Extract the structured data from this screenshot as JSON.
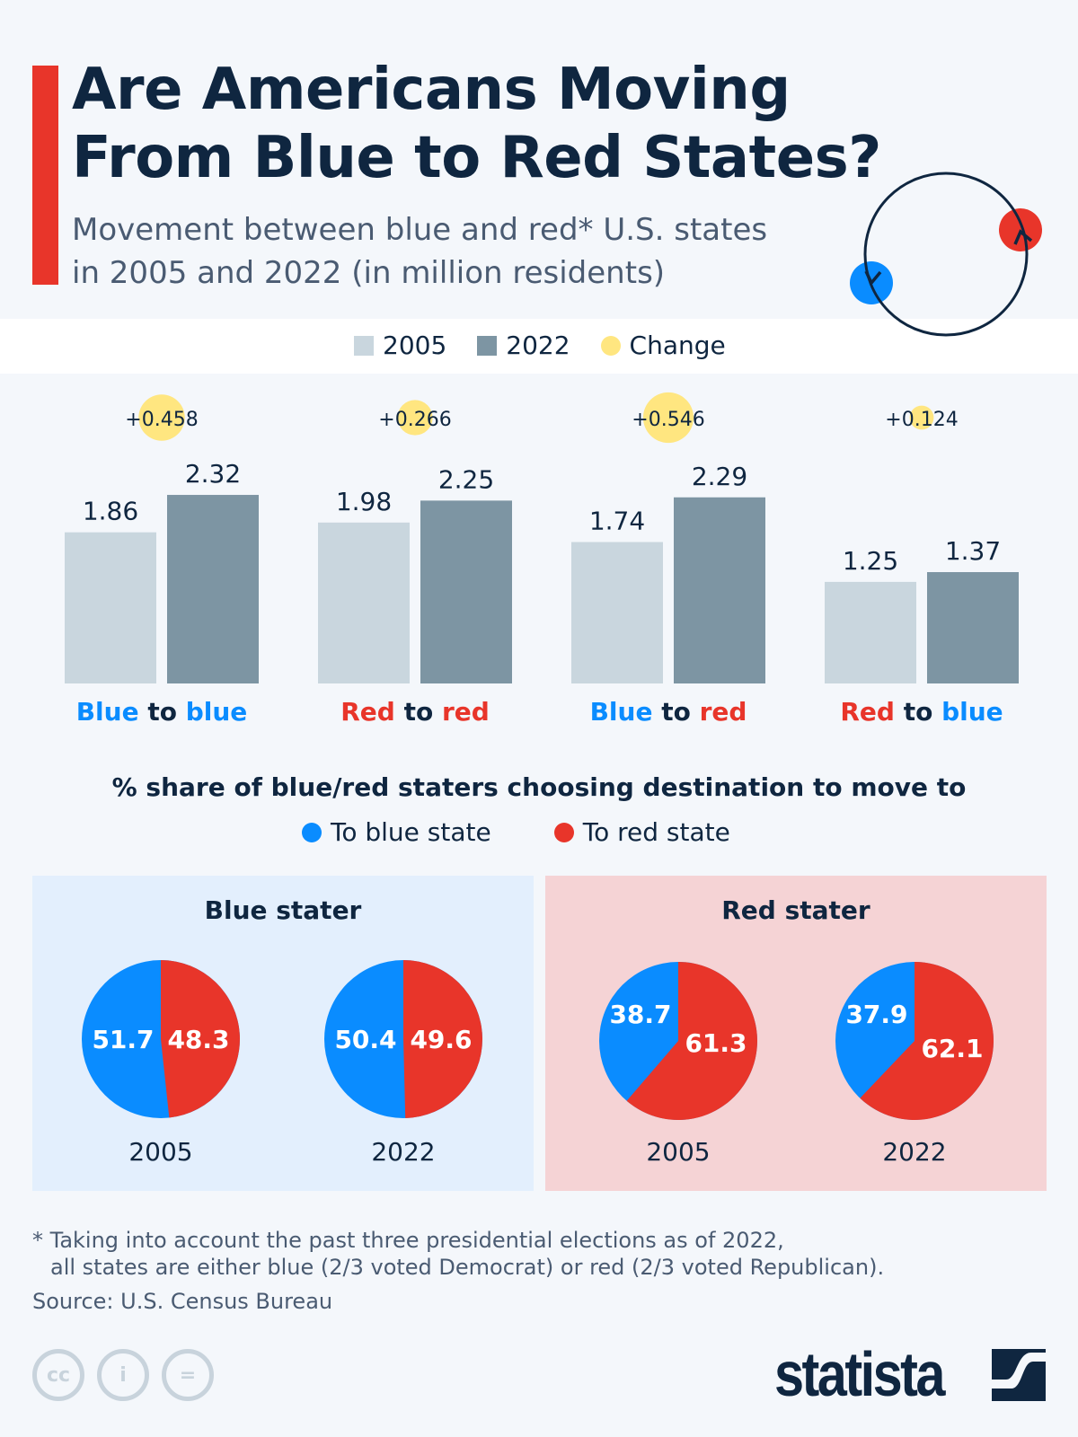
{
  "header": {
    "title_line1": "Are Americans Moving",
    "title_line2": "From Blue to Red States?",
    "subtitle_line1": "Movement between blue and red* U.S. states",
    "subtitle_line2": "in 2005 and 2022 (in million residents)"
  },
  "colors": {
    "accent": "#e8352a",
    "blue": "#0a8cff",
    "red": "#e8352a",
    "bar2005": "#c9d6de",
    "bar2022": "#7d95a3",
    "change": "#ffe680",
    "navy": "#0f2640",
    "blue_panel": "#e3effd",
    "red_panel": "#f5d3d5"
  },
  "chart_data": [
    {
      "type": "bar",
      "legend": [
        "2005",
        "2022",
        "Change"
      ],
      "categories": [
        {
          "from": "Blue",
          "to": "blue",
          "from_color": "blue",
          "to_color": "blue"
        },
        {
          "from": "Red",
          "to": "red",
          "from_color": "red",
          "to_color": "red"
        },
        {
          "from": "Blue",
          "to": "red",
          "from_color": "blue",
          "to_color": "red"
        },
        {
          "from": "Red",
          "to": "blue",
          "from_color": "red",
          "to_color": "blue"
        }
      ],
      "connector": "to",
      "series": [
        {
          "name": "2005",
          "values": [
            1.86,
            1.98,
            1.74,
            1.25
          ]
        },
        {
          "name": "2022",
          "values": [
            2.32,
            2.25,
            2.29,
            1.37
          ]
        }
      ],
      "change": {
        "name": "Change",
        "values": [
          "+0.458",
          "+0.266",
          "+0.546",
          "+0.124"
        ],
        "numeric": [
          0.458,
          0.266,
          0.546,
          0.124
        ]
      }
    },
    {
      "type": "pie",
      "title": "% share of blue/red staters choosing destination to move to",
      "legend": [
        "To blue state",
        "To red state"
      ],
      "panels": [
        {
          "title": "Blue stater",
          "pies": [
            {
              "year": "2005",
              "blue": 51.7,
              "red": 48.3
            },
            {
              "year": "2022",
              "blue": 50.4,
              "red": 49.6
            }
          ]
        },
        {
          "title": "Red stater",
          "pies": [
            {
              "year": "2005",
              "blue": 38.7,
              "red": 61.3
            },
            {
              "year": "2022",
              "blue": 37.9,
              "red": 62.1
            }
          ]
        }
      ]
    }
  ],
  "footer": {
    "note_line1": "* Taking into account the past three presidential elections as of 2022,",
    "note_line2": "all states are either blue (2/3 voted Democrat) or red (2/3 voted Republican).",
    "source": "Source: U.S. Census Bureau",
    "brand": "statista",
    "license_icons": [
      "cc-icon",
      "attribution-icon",
      "no-derivatives-icon"
    ]
  }
}
